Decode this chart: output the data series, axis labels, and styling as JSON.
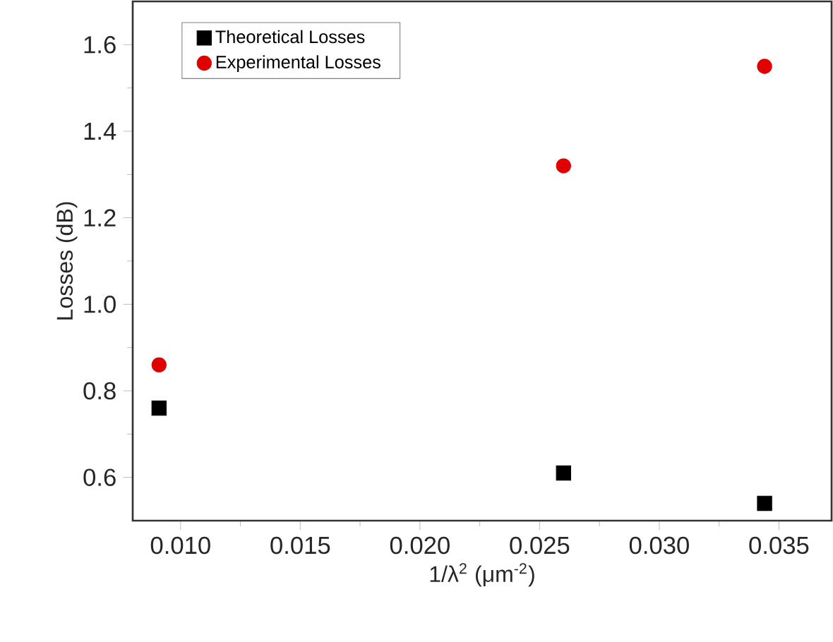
{
  "chart_data": {
    "type": "scatter",
    "xlabel": "1/λ$^{2}$ (μm$^{-2}$)",
    "ylabel": "Losses (dB)",
    "xlim": [
      0.008,
      0.0372
    ],
    "ylim": [
      0.5,
      1.7
    ],
    "xticks": [
      {
        "value": 0.01,
        "label": "0.010"
      },
      {
        "value": 0.015,
        "label": "0.015"
      },
      {
        "value": 0.02,
        "label": "0.020"
      },
      {
        "value": 0.025,
        "label": "0.025"
      },
      {
        "value": 0.03,
        "label": "0.030"
      },
      {
        "value": 0.035,
        "label": "0.035"
      }
    ],
    "yticks": [
      0.6,
      0.8,
      {
        "value": 1.0,
        "label": "1.0"
      },
      1.2,
      1.4,
      1.6
    ],
    "legend": "top left",
    "grid": false,
    "series": [
      {
        "name": "Theoretical Losses",
        "color": "#000000",
        "marker": "square",
        "x": [
          0.0091,
          0.026,
          0.0344
        ],
        "values": [
          0.76,
          0.61,
          0.54
        ]
      },
      {
        "name": "Experimental Losses",
        "color": "#e00000",
        "marker": "circle",
        "x": [
          0.0091,
          0.026,
          0.0344
        ],
        "values": [
          0.86,
          1.32,
          1.55
        ]
      }
    ]
  }
}
